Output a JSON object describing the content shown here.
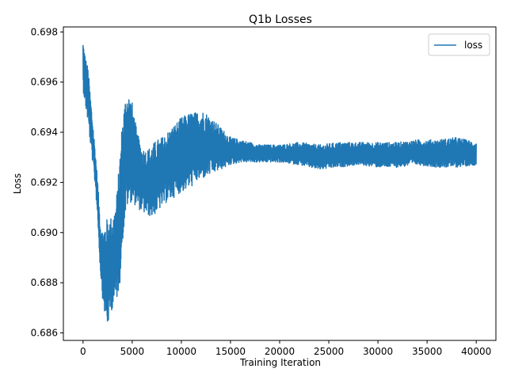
{
  "chart_data": {
    "type": "line",
    "title": "Q1b Losses",
    "xlabel": "Training Iteration",
    "ylabel": "Loss",
    "xlim": [
      -2000,
      42000
    ],
    "ylim": [
      0.6857,
      0.6982
    ],
    "xticks": [
      0,
      5000,
      10000,
      15000,
      20000,
      25000,
      30000,
      35000,
      40000
    ],
    "xtick_labels": [
      "0",
      "5000",
      "10000",
      "15000",
      "20000",
      "25000",
      "30000",
      "35000",
      "40000"
    ],
    "yticks": [
      0.686,
      0.688,
      0.69,
      0.692,
      0.694,
      0.696,
      0.698
    ],
    "ytick_labels": [
      "0.686",
      "0.688",
      "0.690",
      "0.692",
      "0.694",
      "0.696",
      "0.698"
    ],
    "grid": false,
    "legend": {
      "position": "top-right",
      "entries": [
        "loss"
      ]
    },
    "series": [
      {
        "name": "loss",
        "color": "#1f77b4",
        "x": [
          0,
          250,
          500,
          750,
          1000,
          1250,
          1500,
          1750,
          2000,
          2250,
          2500,
          2750,
          3000,
          3250,
          3500,
          3750,
          4000,
          4250,
          4500,
          4750,
          5000,
          5500,
          6000,
          6500,
          7000,
          7500,
          8000,
          8500,
          9000,
          9500,
          10000,
          10500,
          11000,
          11500,
          12000,
          12500,
          13000,
          13500,
          14000,
          14500,
          15000,
          16000,
          17000,
          18000,
          19000,
          20000,
          22000,
          24000,
          26000,
          28000,
          30000,
          32000,
          34000,
          36000,
          38000,
          40000
        ],
        "upper": [
          0.6977,
          0.697,
          0.6966,
          0.6955,
          0.6944,
          0.6933,
          0.692,
          0.6905,
          0.6901,
          0.6904,
          0.6906,
          0.6906,
          0.6907,
          0.691,
          0.6918,
          0.6932,
          0.6945,
          0.6953,
          0.6957,
          0.6955,
          0.6952,
          0.694,
          0.6934,
          0.6933,
          0.6935,
          0.6937,
          0.6938,
          0.694,
          0.6942,
          0.6944,
          0.6946,
          0.6947,
          0.6948,
          0.6948,
          0.6949,
          0.6948,
          0.6946,
          0.6944,
          0.6942,
          0.694,
          0.6938,
          0.6937,
          0.6936,
          0.6935,
          0.6935,
          0.6935,
          0.6936,
          0.6935,
          0.6936,
          0.6936,
          0.6936,
          0.6936,
          0.6937,
          0.6937,
          0.6938,
          0.6936
        ],
        "lower": [
          0.6957,
          0.695,
          0.6944,
          0.6935,
          0.6927,
          0.6918,
          0.6905,
          0.6885,
          0.6873,
          0.6866,
          0.6862,
          0.6867,
          0.687,
          0.6872,
          0.6874,
          0.688,
          0.6895,
          0.6905,
          0.691,
          0.6912,
          0.6912,
          0.691,
          0.6908,
          0.6907,
          0.6906,
          0.6908,
          0.691,
          0.6912,
          0.6913,
          0.6915,
          0.6916,
          0.6917,
          0.6918,
          0.692,
          0.6921,
          0.6922,
          0.6923,
          0.6924,
          0.6925,
          0.6926,
          0.6927,
          0.6928,
          0.6928,
          0.6928,
          0.6928,
          0.6928,
          0.6927,
          0.6925,
          0.6926,
          0.6927,
          0.6926,
          0.6926,
          0.6927,
          0.6926,
          0.6926,
          0.6927
        ]
      }
    ]
  }
}
